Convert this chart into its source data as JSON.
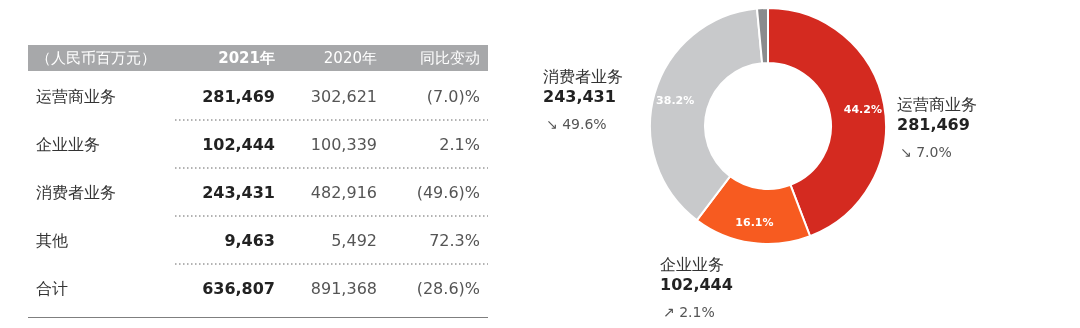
{
  "chart_data": [
    {
      "type": "other",
      "title": "（人民币百万元）",
      "categories": [
        "运营商业务",
        "企业业务",
        "消费者业务",
        "其他",
        "合计"
      ],
      "data_labels": true,
      "series": [
        {
          "name": "2021年",
          "values": [
            281469,
            102444,
            243431,
            9463,
            636807
          ],
          "value_labels": [
            "281,469",
            "102,444",
            "243,431",
            "9,463",
            "636,807"
          ]
        },
        {
          "name": "2020年",
          "values": [
            302621,
            100339,
            482916,
            5492,
            891368
          ],
          "value_labels": [
            "302,621",
            "100,339",
            "482,916",
            "5,492",
            "891,368"
          ]
        },
        {
          "name": "同比变动",
          "values": [
            -7.0,
            2.1,
            -49.6,
            72.3,
            -28.6
          ],
          "value_labels": [
            "(7.0)%",
            "2.1%",
            "(49.6)%",
            "72.3%",
            "(28.6)%"
          ]
        }
      ]
    },
    {
      "type": "donut",
      "categories": [
        "运营商业务",
        "企业业务",
        "消费者业务",
        null
      ],
      "values": [
        281469,
        102444,
        243431,
        9463
      ],
      "colors": [
        "#d42a20",
        "#f75b20",
        "#c8c9cb",
        "#8a8b8d"
      ],
      "value_labels": [
        "281,469",
        "102,444",
        "243,431",
        null
      ],
      "annotations": [
        {
          "text": "44.2%",
          "x": "运营商业务"
        },
        {
          "text": "16.1%",
          "x": "企业业务"
        },
        {
          "text": "38.2%",
          "x": "消费者业务"
        },
        {
          "text": "↘ 7.0%",
          "x": "运营商业务"
        },
        {
          "text": "↗ 2.1%",
          "x": "企业业务"
        },
        {
          "text": "↘ 49.6%",
          "x": "消费者业务"
        }
      ]
    }
  ]
}
